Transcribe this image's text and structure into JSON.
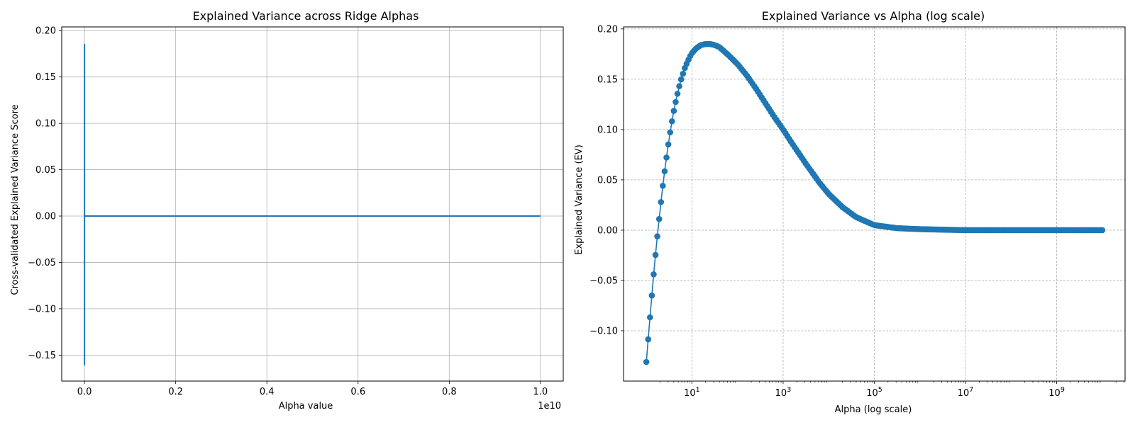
{
  "chart_data": [
    {
      "type": "line",
      "title": "Explained Variance across Ridge Alphas",
      "xlabel": "Alpha value",
      "ylabel": "Cross-validated Explained Variance Score",
      "x_offset_label": "1e10",
      "xlim": [
        -500000000,
        10500000000
      ],
      "ylim": [
        -0.178,
        0.204
      ],
      "xticks": [
        0,
        2000000000,
        4000000000,
        6000000000,
        8000000000,
        10000000000
      ],
      "xtick_labels": [
        "0.0",
        "0.2",
        "0.4",
        "0.6",
        "0.8",
        "1.0"
      ],
      "yticks": [
        -0.15,
        -0.1,
        -0.05,
        0.0,
        0.05,
        0.1,
        0.15,
        0.2
      ],
      "ytick_labels": [
        "−0.15",
        "−0.10",
        "−0.05",
        "0.00",
        "0.05",
        "0.10",
        "0.15",
        "0.20"
      ],
      "grid": true,
      "series": [
        {
          "color": "#1f77b4",
          "x": [
            1,
            10,
            30,
            1000,
            10000,
            100000,
            1000000,
            10000000000
          ],
          "y": [
            -0.161,
            0.18,
            0.185,
            0.1,
            0.03,
            0.004,
            0.0,
            0.0
          ]
        }
      ]
    },
    {
      "type": "line",
      "title": "Explained Variance vs Alpha (log scale)",
      "xlabel": "Alpha (log scale)",
      "ylabel": "Explained Variance (EV)",
      "xscale": "log",
      "xlim_log10": [
        -0.5,
        10.5
      ],
      "ylim": [
        -0.15,
        0.202
      ],
      "xticks": [
        10,
        1000,
        100000,
        10000000,
        1000000000
      ],
      "xtick_labels": [
        {
          "base": "10",
          "exp": "1"
        },
        {
          "base": "10",
          "exp": "3"
        },
        {
          "base": "10",
          "exp": "5"
        },
        {
          "base": "10",
          "exp": "7"
        },
        {
          "base": "10",
          "exp": "9"
        }
      ],
      "yticks": [
        -0.1,
        -0.05,
        0.0,
        0.05,
        0.1,
        0.15,
        0.2
      ],
      "ytick_labels": [
        "−0.10",
        "−0.05",
        "0.00",
        "0.05",
        "0.10",
        "0.15",
        "0.20"
      ],
      "grid": true,
      "grid_style": "dashed",
      "marker": "circle",
      "series": [
        {
          "color": "#1f77b4",
          "curve": {
            "points": 250,
            "x_range": [
              1,
              10000000000
            ],
            "knots_log10x": [
              0,
              0.05,
              0.1,
              0.15,
              0.2,
              0.25,
              0.3,
              0.35,
              0.4,
              0.45,
              0.5,
              0.55,
              0.6,
              0.65,
              0.7,
              0.75,
              0.8,
              0.85,
              0.9,
              0.95,
              1.0,
              1.1,
              1.2,
              1.3,
              1.4,
              1.5,
              1.6,
              1.7,
              1.8,
              2.0,
              2.2,
              2.4,
              2.6,
              2.8,
              3.0,
              3.2,
              3.5,
              3.8,
              4.0,
              4.3,
              4.6,
              5.0,
              5.5,
              6.0,
              7.0,
              8.0,
              10.0
            ],
            "knots_y": [
              -0.131,
              -0.103,
              -0.076,
              -0.049,
              -0.025,
              -0.002,
              0.019,
              0.04,
              0.058,
              0.075,
              0.091,
              0.105,
              0.118,
              0.129,
              0.139,
              0.148,
              0.155,
              0.162,
              0.167,
              0.172,
              0.176,
              0.181,
              0.184,
              0.185,
              0.185,
              0.184,
              0.182,
              0.178,
              0.174,
              0.165,
              0.154,
              0.141,
              0.127,
              0.113,
              0.1,
              0.086,
              0.066,
              0.047,
              0.036,
              0.023,
              0.013,
              0.005,
              0.002,
              0.001,
              0.0,
              0.0,
              0.0
            ]
          }
        }
      ]
    }
  ]
}
